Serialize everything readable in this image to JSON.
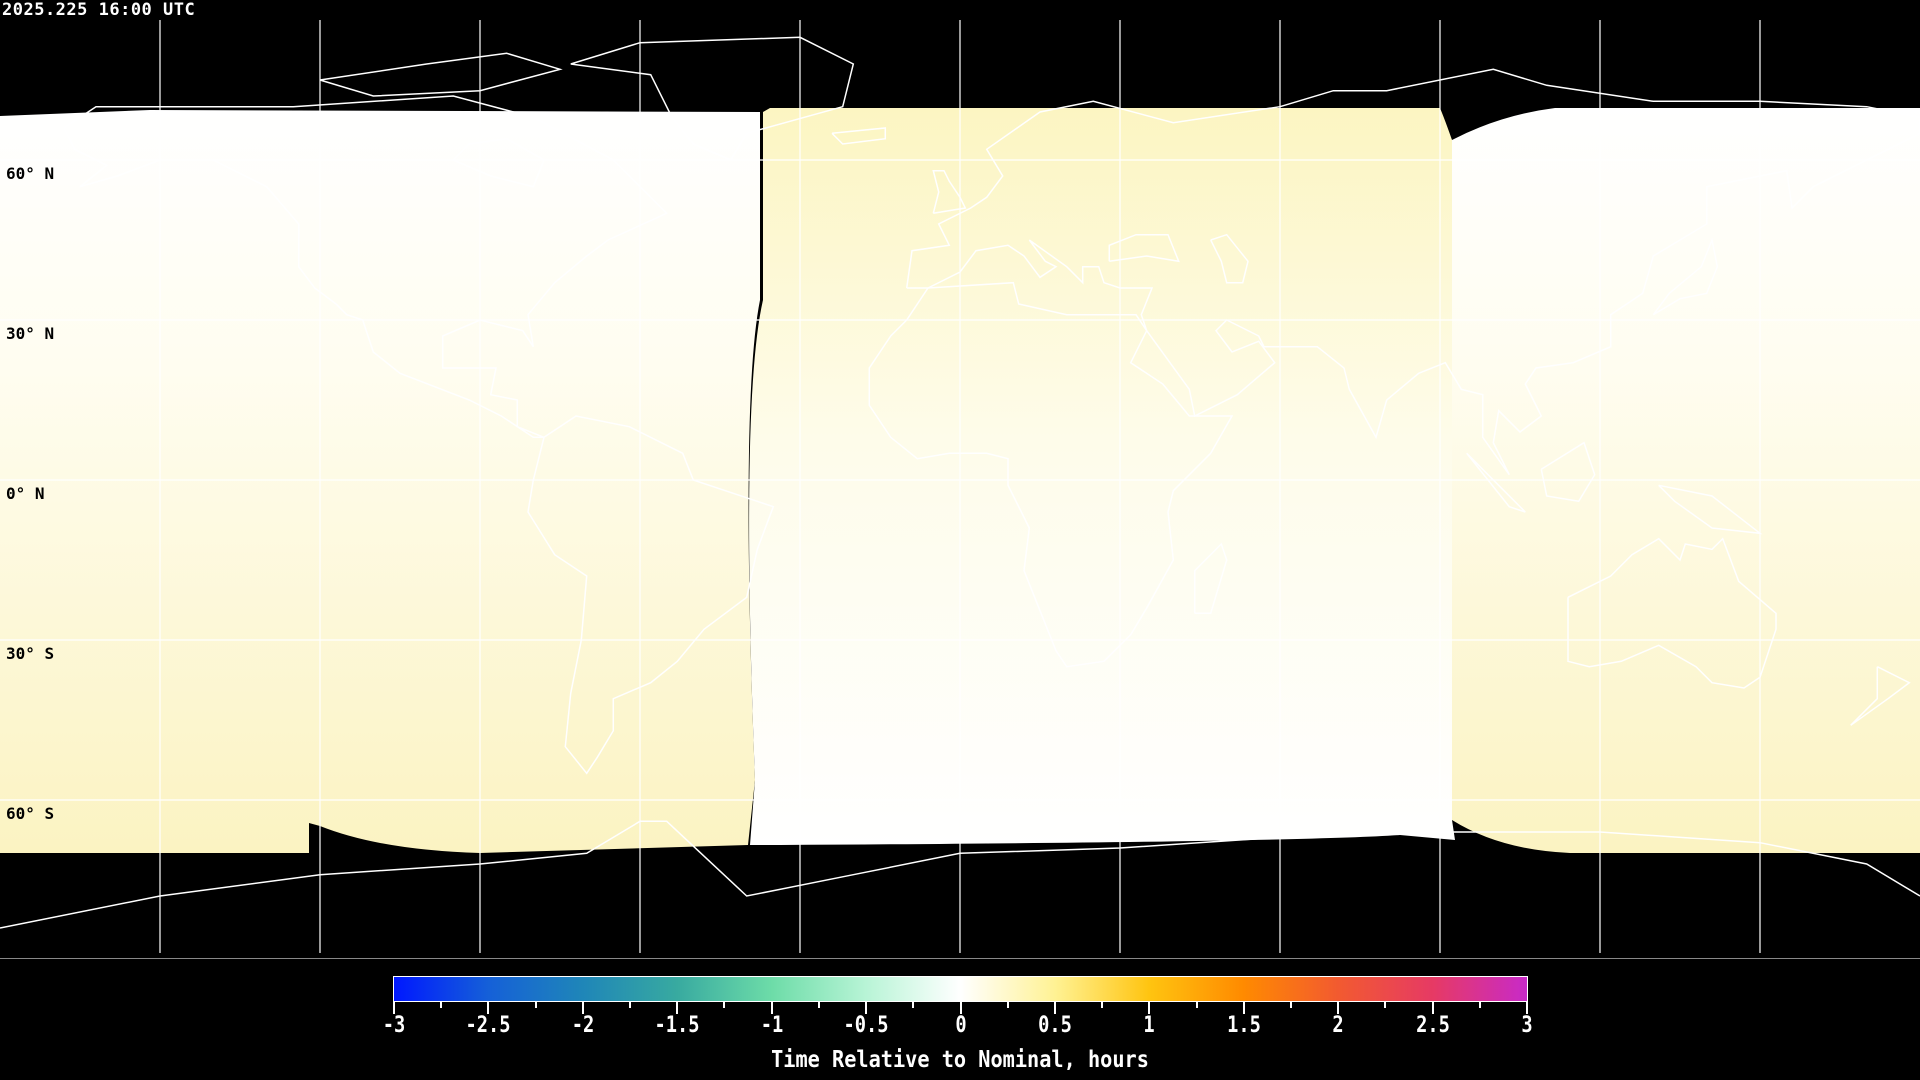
{
  "timestamp": "2025.225 16:00 UTC",
  "map": {
    "projection": "equirectangular",
    "lat_labels": [
      "60° N",
      "30° N",
      "0° N",
      "30° S",
      "60° S"
    ],
    "lat_values": [
      60,
      30,
      0,
      -30,
      -60
    ],
    "grid_lon_step": 30,
    "colors": {
      "no_data": "#000000",
      "near_zero": "#fffff6",
      "plus_0_25": "#fcf6c6"
    }
  },
  "colorbar": {
    "title": "Time Relative to Nominal, hours",
    "min": -3,
    "max": 3,
    "tick_labels": [
      "-3",
      "-2.5",
      "-2",
      "-1.5",
      "-1",
      "-0.5",
      "0",
      "0.5",
      "1",
      "1.5",
      "2",
      "2.5",
      "3"
    ],
    "colors": [
      "#0018ff",
      "#1560d8",
      "#1f86b8",
      "#38aaa0",
      "#6ddca8",
      "#b8f4d6",
      "#ffffff",
      "#fff294",
      "#ffc410",
      "#ff8a00",
      "#f25a30",
      "#e63a64",
      "#c82ac8"
    ]
  }
}
